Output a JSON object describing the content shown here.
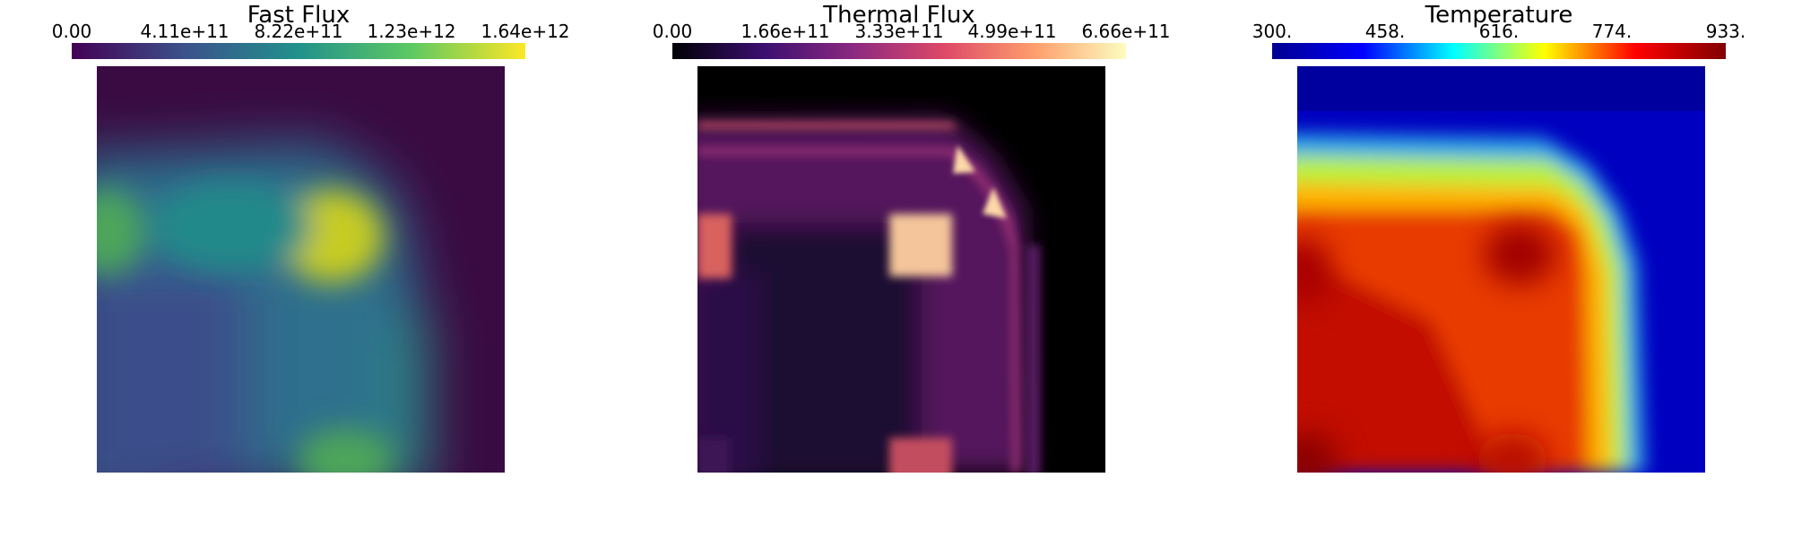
{
  "panels": [
    {
      "title": "Fast Flux",
      "ticks": [
        "0.00",
        "4.11e+11",
        "8.22e+11",
        "1.23e+12",
        "1.64e+12"
      ],
      "colormap": "viridis",
      "colors": [
        "#440154",
        "#3b528b",
        "#21918c",
        "#5ec962",
        "#fde725"
      ],
      "background": "#3a0a42"
    },
    {
      "title": "Thermal Flux",
      "ticks": [
        "0.00",
        "1.66e+11",
        "3.33e+11",
        "4.99e+11",
        "6.66e+11"
      ],
      "colormap": "magma",
      "colors": [
        "#000004",
        "#3b0f70",
        "#8c2981",
        "#de4968",
        "#fe9f6d",
        "#fcfdbf"
      ],
      "background": "#000000"
    },
    {
      "title": "Temperature",
      "ticks": [
        "300.",
        "458.",
        "616.",
        "774.",
        "933."
      ],
      "colormap": "jet",
      "colors": [
        "#00008f",
        "#0000ff",
        "#00ffff",
        "#ffff00",
        "#ff0000",
        "#800000"
      ],
      "background": "#0000c8"
    }
  ]
}
